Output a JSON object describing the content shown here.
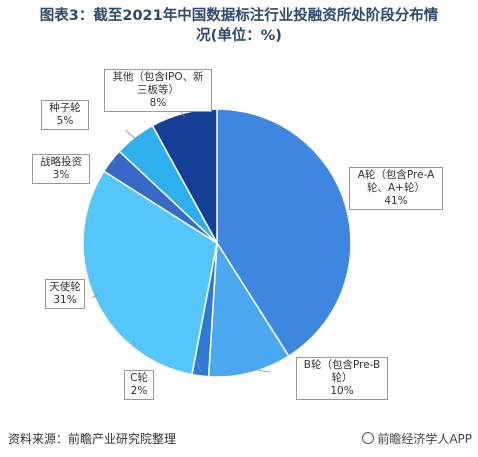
{
  "title": {
    "line1": "图表3：截至2021年中国数据标注行业投融资所处阶段分布情",
    "line2": "况(单位：%)"
  },
  "chart_data": {
    "type": "pie",
    "title": "图表3：截至2021年中国数据标注行业投融资所处阶段分布情况(单位：%)",
    "slices": [
      {
        "name": "A轮（包含Pre-A轮、A+轮）",
        "value": 41,
        "label_line1": "A轮（包含Pre-A",
        "label_line2": "轮、A+轮）",
        "label_value": "41%",
        "color": "#3f86e0"
      },
      {
        "name": "B轮（包含Pre-B轮）",
        "value": 10,
        "label_line1": "B轮（包含Pre-B",
        "label_line2": "轮）",
        "label_value": "10%",
        "color": "#49a8f0"
      },
      {
        "name": "C轮",
        "value": 2,
        "label_line1": "C轮",
        "label_line2": "",
        "label_value": "2%",
        "color": "#2f79d6"
      },
      {
        "name": "天使轮",
        "value": 31,
        "label_line1": "天使轮",
        "label_line2": "",
        "label_value": "31%",
        "color": "#54c6fa"
      },
      {
        "name": "战略投资",
        "value": 3,
        "label_line1": "战略投资",
        "label_line2": "",
        "label_value": "3%",
        "color": "#3669c8"
      },
      {
        "name": "种子轮",
        "value": 5,
        "label_line1": "种子轮",
        "label_line2": "",
        "label_value": "5%",
        "color": "#2fb0ee"
      },
      {
        "name": "其他（包含IPO、新三板等）",
        "value": 8,
        "label_line1": "其他（包含IPO、新",
        "label_line2": "三板等）",
        "label_value": "8%",
        "color": "#153f96"
      }
    ]
  },
  "footer": {
    "source": "资料来源：前瞻产业研究院整理",
    "brand": "前瞻经济学人APP"
  }
}
